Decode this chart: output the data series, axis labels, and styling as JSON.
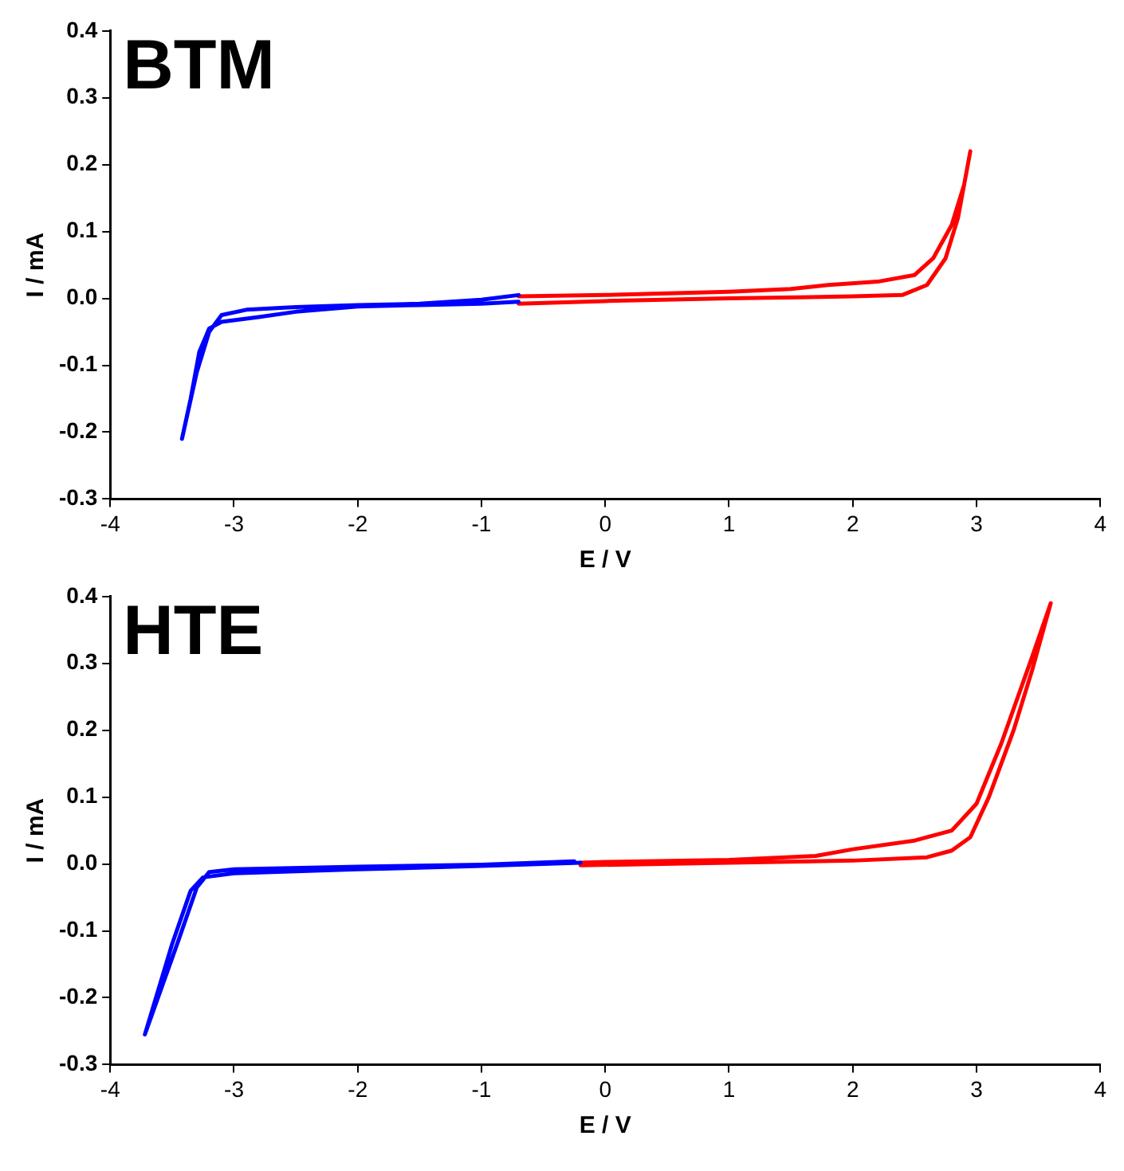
{
  "chart_data": [
    {
      "type": "line",
      "title": "BTM",
      "xlabel": "E / V",
      "ylabel": "I / mA",
      "xlim": [
        -4,
        4
      ],
      "xticks": [
        -4,
        -3,
        -2,
        -1,
        0,
        1,
        2,
        3,
        4
      ],
      "ylim": [
        -0.3,
        0.4
      ],
      "yticks": [
        -0.3,
        -0.2,
        -0.1,
        {
          "value": 0,
          "label": "0.0"
        },
        0.1,
        0.2,
        0.3,
        0.4
      ],
      "grid": false,
      "legend": false,
      "marker": "none",
      "line_style": "solid",
      "series": [
        {
          "color": "#0000ff",
          "x": [
            -0.7,
            -1.0,
            -1.5,
            -2.0,
            -2.5,
            -2.9,
            -3.1,
            -3.2,
            -3.3,
            -3.42,
            -3.35,
            -3.28,
            -3.2,
            -3.1,
            -2.8,
            -2.5,
            -2.0,
            -1.5,
            -1.0,
            -0.7
          ],
          "values": [
            0.005,
            -0.002,
            -0.008,
            -0.01,
            -0.013,
            -0.017,
            -0.025,
            -0.05,
            -0.11,
            -0.21,
            -0.15,
            -0.08,
            -0.045,
            -0.035,
            -0.028,
            -0.02,
            -0.012,
            -0.01,
            -0.008,
            -0.005
          ]
        },
        {
          "color": "#ff0000",
          "x": [
            -0.7,
            0,
            1,
            2,
            2.4,
            2.6,
            2.75,
            2.85,
            2.95,
            2.9,
            2.8,
            2.65,
            2.5,
            2.2,
            1.8,
            1.5,
            1.0,
            0,
            -0.7
          ],
          "values": [
            -0.008,
            -0.004,
            0.0,
            0.003,
            0.005,
            0.02,
            0.06,
            0.12,
            0.22,
            0.17,
            0.11,
            0.06,
            0.035,
            0.025,
            0.02,
            0.014,
            0.01,
            0.005,
            0.003
          ]
        }
      ]
    },
    {
      "type": "line",
      "title": "HTE",
      "xlabel": "E / V",
      "ylabel": "I / mA",
      "xlim": [
        -4,
        4
      ],
      "xticks": [
        -4,
        -3,
        -2,
        -1,
        0,
        1,
        2,
        3,
        4
      ],
      "ylim": [
        -0.3,
        0.4
      ],
      "yticks": [
        -0.3,
        -0.2,
        -0.1,
        {
          "value": 0,
          "label": "0.0"
        },
        0.1,
        0.2,
        0.3,
        0.4
      ],
      "grid": false,
      "legend": false,
      "marker": "none",
      "line_style": "solid",
      "series": [
        {
          "color": "#0000ff",
          "x": [
            -0.2,
            -1,
            -2,
            -3,
            -3.25,
            -3.35,
            -3.5,
            -3.72,
            -3.45,
            -3.3,
            -3.2,
            -3,
            -2,
            -1,
            -0.25
          ],
          "values": [
            0.002,
            -0.003,
            -0.008,
            -0.014,
            -0.02,
            -0.04,
            -0.12,
            -0.255,
            -0.115,
            -0.035,
            -0.012,
            -0.008,
            -0.004,
            -0.001,
            0.004
          ]
        },
        {
          "color": "#ff0000",
          "x": [
            -0.2,
            1,
            2,
            2.6,
            2.8,
            2.95,
            3.1,
            3.3,
            3.45,
            3.6,
            3.45,
            3.2,
            3.0,
            2.8,
            2.5,
            2.0,
            1.7,
            1.0,
            0,
            -0.2
          ],
          "values": [
            -0.002,
            0.002,
            0.005,
            0.01,
            0.02,
            0.04,
            0.1,
            0.2,
            0.29,
            0.39,
            0.31,
            0.18,
            0.09,
            0.05,
            0.035,
            0.022,
            0.012,
            0.006,
            0.003,
            0.002
          ]
        }
      ]
    }
  ]
}
